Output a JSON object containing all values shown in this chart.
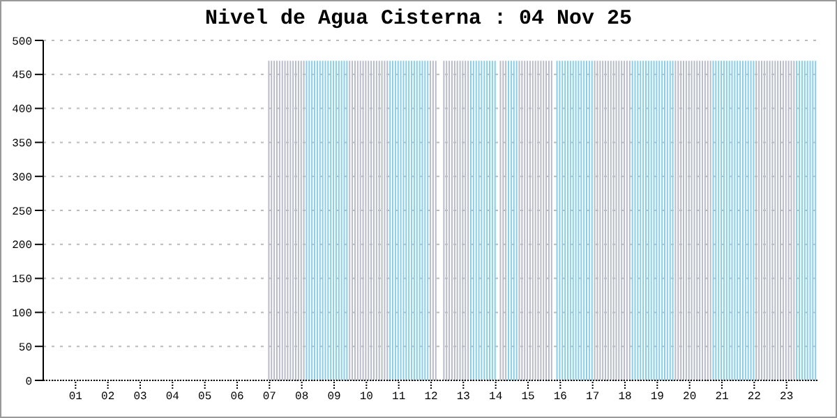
{
  "chart_data": {
    "type": "bar",
    "title": "Nivel de Agua Cisterna : 04 Nov 25",
    "x": [
      7,
      7.083,
      7.167,
      7.25,
      7.333,
      7.417,
      7.5,
      7.583,
      7.667,
      7.75,
      7.833,
      7.917,
      8,
      8.083,
      8.167,
      8.25,
      8.333,
      8.417,
      8.5,
      8.583,
      8.667,
      8.75,
      8.833,
      8.917,
      9,
      9.083,
      9.167,
      9.25,
      9.333,
      9.417,
      9.5,
      9.583,
      9.667,
      9.75,
      9.833,
      9.917,
      10,
      10.083,
      10.167,
      10.25,
      10.333,
      10.417,
      10.5,
      10.583,
      10.667,
      10.75,
      10.833,
      10.917,
      11,
      11.083,
      11.167,
      11.25,
      11.333,
      11.417,
      11.5,
      11.583,
      11.667,
      11.75,
      11.833,
      11.917,
      12,
      12.083,
      12.167,
      12.25,
      12.333,
      12.417,
      12.5,
      12.583,
      12.667,
      12.75,
      12.833,
      12.917,
      13,
      13.083,
      13.167,
      13.25,
      13.333,
      13.417,
      13.5,
      13.583,
      13.667,
      13.75,
      13.833,
      13.917,
      14,
      14.083,
      14.167,
      14.25,
      14.333,
      14.417,
      14.5,
      14.583,
      14.667,
      14.75,
      14.833,
      14.917,
      15,
      15.083,
      15.167,
      15.25,
      15.333,
      15.417,
      15.5,
      15.583,
      15.667,
      15.75,
      15.833,
      15.917,
      16,
      16.083,
      16.167,
      16.25,
      16.333,
      16.417,
      16.5,
      16.583,
      16.667,
      16.75,
      16.833,
      16.917,
      17,
      17.083,
      17.167,
      17.25,
      17.333,
      17.417,
      17.5,
      17.583,
      17.667,
      17.75,
      17.833,
      17.917,
      18,
      18.083,
      18.167,
      18.25,
      18.333,
      18.417,
      18.5,
      18.583,
      18.667,
      18.75,
      18.833,
      18.917,
      19,
      19.083,
      19.167,
      19.25,
      19.333,
      19.417,
      19.5,
      19.583,
      19.667,
      19.75,
      19.833,
      19.917,
      20,
      20.083,
      20.167,
      20.25,
      20.333,
      20.417,
      20.5,
      20.583,
      20.667,
      20.75,
      20.833,
      20.917,
      21,
      21.083,
      21.167,
      21.25,
      21.333,
      21.417,
      21.5,
      21.583,
      21.667,
      21.75,
      21.833,
      21.917,
      22,
      22.083,
      22.167,
      22.25,
      22.333,
      22.417,
      22.5,
      22.583,
      22.667,
      22.75,
      22.833,
      22.917,
      23,
      23.083,
      23.167,
      23.25,
      23.333,
      23.417,
      23.5,
      23.583,
      23.667,
      23.75,
      23.833,
      23.917
    ],
    "values": [
      470,
      470,
      470,
      470,
      470,
      470,
      470,
      470,
      470,
      470,
      470,
      470,
      470,
      470,
      470,
      470,
      470,
      470,
      470,
      470,
      470,
      470,
      470,
      470,
      470,
      470,
      470,
      470,
      470,
      470,
      470,
      470,
      470,
      470,
      470,
      470,
      470,
      470,
      470,
      470,
      470,
      470,
      470,
      470,
      470,
      470,
      470,
      470,
      470,
      470,
      470,
      470,
      470,
      470,
      470,
      470,
      470,
      470,
      470,
      470,
      470,
      470,
      470,
      null,
      null,
      470,
      470,
      470,
      470,
      470,
      470,
      470,
      470,
      470,
      470,
      470,
      470,
      470,
      470,
      470,
      470,
      470,
      470,
      470,
      470,
      null,
      470,
      470,
      470,
      470,
      470,
      470,
      470,
      470,
      470,
      470,
      470,
      470,
      470,
      470,
      470,
      470,
      470,
      470,
      470,
      470,
      null,
      470,
      470,
      470,
      470,
      470,
      470,
      470,
      470,
      470,
      470,
      470,
      470,
      470,
      470,
      470,
      470,
      470,
      470,
      470,
      470,
      470,
      470,
      470,
      470,
      470,
      470,
      470,
      470,
      470,
      470,
      470,
      470,
      470,
      470,
      470,
      470,
      470,
      470,
      470,
      470,
      470,
      470,
      470,
      470,
      470,
      470,
      470,
      470,
      470,
      470,
      470,
      470,
      470,
      470,
      470,
      470,
      470,
      470,
      470,
      470,
      470,
      470,
      470,
      470,
      470,
      470,
      470,
      470,
      470,
      470,
      470,
      470,
      470,
      470,
      470,
      470,
      470,
      470,
      470,
      470,
      470,
      470,
      470,
      470,
      470,
      470,
      470,
      470,
      470,
      470,
      470,
      470,
      470,
      470,
      470,
      470,
      470
    ],
    "colors": [
      "#b8bcc8",
      "#b8bcc8",
      "#b8bcc8",
      "#b8bcc8",
      "#b8bcc8",
      "#b8bcc8",
      "#b8bcc8",
      "#b8bcc8",
      "#b8bcc8",
      "#b8bcc8",
      "#b8bcc8",
      "#b8bcc8",
      "#b8bcc8",
      "#b8bcc8",
      "#87ceeb",
      "#87ceeb",
      "#87ceeb",
      "#87ceeb",
      "#87ceeb",
      "#87ceeb",
      "#87ceeb",
      "#87ceeb",
      "#87ceeb",
      "#87ceeb",
      "#87ceeb",
      "#87ceeb",
      "#87ceeb",
      "#87ceeb",
      "#87ceeb",
      "#87ceeb",
      "#b8bcc8",
      "#b8bcc8",
      "#b8bcc8",
      "#b8bcc8",
      "#b8bcc8",
      "#b8bcc8",
      "#b8bcc8",
      "#b8bcc8",
      "#b8bcc8",
      "#b8bcc8",
      "#b8bcc8",
      "#b8bcc8",
      "#b8bcc8",
      "#b8bcc8",
      "#b8bcc8",
      "#87ceeb",
      "#87ceeb",
      "#87ceeb",
      "#87ceeb",
      "#87ceeb",
      "#87ceeb",
      "#87ceeb",
      "#87ceeb",
      "#87ceeb",
      "#87ceeb",
      "#87ceeb",
      "#87ceeb",
      "#87ceeb",
      "#87ceeb",
      "#87ceeb",
      "#b8bcc8",
      "#b8bcc8",
      "#b8bcc8",
      "#b8bcc8",
      "#b8bcc8",
      "#b8bcc8",
      "#b8bcc8",
      "#b8bcc8",
      "#b8bcc8",
      "#b8bcc8",
      "#b8bcc8",
      "#b8bcc8",
      "#b8bcc8",
      "#b8bcc8",
      "#b8bcc8",
      "#87ceeb",
      "#87ceeb",
      "#87ceeb",
      "#87ceeb",
      "#87ceeb",
      "#87ceeb",
      "#87ceeb",
      "#87ceeb",
      "#87ceeb",
      "#87ceeb",
      "#b8bcc8",
      "#b8bcc8",
      "#b8bcc8",
      "#b8bcc8",
      "#87ceeb",
      "#87ceeb",
      "#87ceeb",
      "#87ceeb",
      "#b8bcc8",
      "#b8bcc8",
      "#b8bcc8",
      "#b8bcc8",
      "#b8bcc8",
      "#b8bcc8",
      "#b8bcc8",
      "#b8bcc8",
      "#b8bcc8",
      "#b8bcc8",
      "#b8bcc8",
      "#b8bcc8",
      "#b8bcc8",
      "#b8bcc8",
      "#87ceeb",
      "#87ceeb",
      "#87ceeb",
      "#87ceeb",
      "#87ceeb",
      "#87ceeb",
      "#87ceeb",
      "#87ceeb",
      "#87ceeb",
      "#87ceeb",
      "#87ceeb",
      "#87ceeb",
      "#87ceeb",
      "#87ceeb",
      "#b8bcc8",
      "#b8bcc8",
      "#b8bcc8",
      "#b8bcc8",
      "#b8bcc8",
      "#b8bcc8",
      "#b8bcc8",
      "#b8bcc8",
      "#b8bcc8",
      "#b8bcc8",
      "#b8bcc8",
      "#b8bcc8",
      "#b8bcc8",
      "#b8bcc8",
      "#87ceeb",
      "#87ceeb",
      "#87ceeb",
      "#87ceeb",
      "#87ceeb",
      "#87ceeb",
      "#87ceeb",
      "#87ceeb",
      "#87ceeb",
      "#87ceeb",
      "#87ceeb",
      "#87ceeb",
      "#87ceeb",
      "#87ceeb",
      "#87ceeb",
      "#87ceeb",
      "#b8bcc8",
      "#b8bcc8",
      "#b8bcc8",
      "#b8bcc8",
      "#b8bcc8",
      "#b8bcc8",
      "#b8bcc8",
      "#b8bcc8",
      "#b8bcc8",
      "#b8bcc8",
      "#b8bcc8",
      "#b8bcc8",
      "#b8bcc8",
      "#b8bcc8",
      "#87ceeb",
      "#87ceeb",
      "#87ceeb",
      "#87ceeb",
      "#87ceeb",
      "#87ceeb",
      "#87ceeb",
      "#87ceeb",
      "#87ceeb",
      "#87ceeb",
      "#87ceeb",
      "#87ceeb",
      "#87ceeb",
      "#87ceeb",
      "#87ceeb",
      "#87ceeb",
      "#b8bcc8",
      "#b8bcc8",
      "#b8bcc8",
      "#b8bcc8",
      "#b8bcc8",
      "#b8bcc8",
      "#b8bcc8",
      "#b8bcc8",
      "#b8bcc8",
      "#b8bcc8",
      "#b8bcc8",
      "#b8bcc8",
      "#b8bcc8",
      "#b8bcc8",
      "#b8bcc8",
      "#87ceeb",
      "#87ceeb",
      "#87ceeb",
      "#87ceeb",
      "#87ceeb",
      "#87ceeb",
      "#87ceeb",
      "#87ceeb"
    ],
    "xlim": [
      0,
      24
    ],
    "xticks": [
      {
        "value": 1,
        "label": "01"
      },
      {
        "value": 2,
        "label": "02"
      },
      {
        "value": 3,
        "label": "03"
      },
      {
        "value": 4,
        "label": "04"
      },
      {
        "value": 5,
        "label": "05"
      },
      {
        "value": 6,
        "label": "06"
      },
      {
        "value": 7,
        "label": "07"
      },
      {
        "value": 8,
        "label": "08"
      },
      {
        "value": 9,
        "label": "09"
      },
      10,
      11,
      12,
      13,
      14,
      15,
      16,
      17,
      18,
      19,
      20,
      21,
      22,
      23
    ],
    "ylim": [
      0,
      500
    ],
    "yticks": [
      0,
      50,
      100,
      150,
      200,
      250,
      300,
      350,
      400,
      450,
      500
    ],
    "grid": "y",
    "legend": false
  }
}
